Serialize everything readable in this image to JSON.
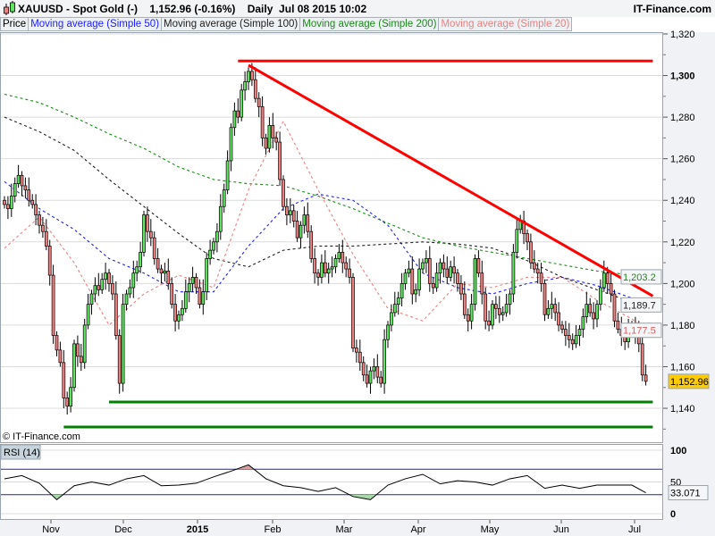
{
  "header": {
    "title": "XAUUSD - Spot Gold (-)    1,152.96 (-0.16%)    Daily  Jul 08 2015 10:02",
    "brand": "IT-Finance.com"
  },
  "legend": [
    {
      "label": "Price",
      "color": "#000000"
    },
    {
      "label": "Moving average (Simple 50)",
      "color": "#2020ff"
    },
    {
      "label": "Moving average (Simple 100)",
      "color": "#202020"
    },
    {
      "label": "Moving average (Simple 200)",
      "color": "#1a8a1a"
    },
    {
      "label": "Moving average (Simple 20)",
      "color": "#e88080"
    }
  ],
  "copyright": "© IT-Finance.com",
  "rsi_label": "RSI (14)",
  "colors": {
    "up": "#5ee65e",
    "down": "#f08080",
    "trendline": "#ff0000",
    "support": "#008000",
    "last_price_bg": "#ffcc00",
    "rsi_bands": "#2222bb"
  },
  "chart_data": [
    {
      "type": "candlestick",
      "symbol": "XAUUSD",
      "last": "1,152.96",
      "change": "-0.16%",
      "interval": "Daily",
      "x_tick_labels": [
        "Nov",
        "Dec",
        "2015",
        "Feb",
        "Mar",
        "Apr",
        "May",
        "Jun",
        "Jul"
      ],
      "y_tick_labels": [
        "1,320",
        "1,300",
        "1,280",
        "1,260",
        "1,240",
        "1,220",
        "1,200",
        "1,180",
        "1,160",
        "1,140"
      ],
      "ylim": [
        1128,
        1325
      ],
      "grid": true,
      "close": [
        1238,
        1236,
        1242,
        1248,
        1252,
        1247,
        1245,
        1240,
        1238,
        1233,
        1228,
        1225,
        1218,
        1204,
        1175,
        1168,
        1162,
        1145,
        1141,
        1150,
        1171,
        1165,
        1162,
        1180,
        1190,
        1195,
        1199,
        1197,
        1202,
        1205,
        1200,
        1195,
        1175,
        1152,
        1190,
        1195,
        1198,
        1205,
        1208,
        1215,
        1233,
        1225,
        1222,
        1212,
        1207,
        1205,
        1206,
        1200,
        1190,
        1182,
        1185,
        1188,
        1196,
        1200,
        1203,
        1198,
        1190,
        1196,
        1212,
        1216,
        1220,
        1225,
        1237,
        1245,
        1259,
        1275,
        1283,
        1280,
        1293,
        1297,
        1302,
        1298,
        1289,
        1285,
        1270,
        1265,
        1276,
        1270,
        1268,
        1250,
        1237,
        1233,
        1235,
        1230,
        1222,
        1228,
        1233,
        1225,
        1212,
        1205,
        1203,
        1210,
        1205,
        1207,
        1208,
        1212,
        1215,
        1210,
        1207,
        1203,
        1169,
        1167,
        1162,
        1156,
        1152,
        1158,
        1160,
        1155,
        1152,
        1173,
        1180,
        1186,
        1190,
        1193,
        1200,
        1205,
        1207,
        1195,
        1197,
        1207,
        1210,
        1212,
        1200,
        1198,
        1205,
        1210,
        1207,
        1203,
        1208,
        1205,
        1200,
        1195,
        1185,
        1182,
        1190,
        1212,
        1205,
        1195,
        1182,
        1180,
        1190,
        1188,
        1185,
        1186,
        1190,
        1195,
        1215,
        1226,
        1230,
        1224,
        1220,
        1210,
        1207,
        1205,
        1200,
        1185,
        1188,
        1190,
        1186,
        1180,
        1178,
        1175,
        1173,
        1171,
        1175,
        1178,
        1184,
        1190,
        1186,
        1183,
        1190,
        1198,
        1205,
        1200,
        1195,
        1182,
        1178,
        1175,
        1172,
        1178,
        1180,
        1176,
        1171,
        1156,
        1152.96
      ],
      "moving_averages_every_10_bars": {
        "sma50": {
          "name": "Moving average (Simple 50)",
          "color": "#2020ff",
          "last": "",
          "values": [
            1249,
            1236,
            1226,
            1212,
            1205,
            1196,
            1196,
            1218,
            1236,
            1243,
            1240,
            1228,
            1205,
            1198,
            1195,
            1200,
            1203,
            1199,
            1193,
            1190
          ]
        },
        "sma100": {
          "name": "Moving average (Simple 100)",
          "color": "#202020",
          "last": "1,189.7",
          "values": [
            1280,
            1273,
            1264,
            1250,
            1237,
            1224,
            1212,
            1208,
            1216,
            1218,
            1218,
            1219,
            1220,
            1219,
            1217,
            1211,
            1203,
            1197,
            1191,
            1189.7
          ]
        },
        "sma200": {
          "name": "Moving average (Simple 200)",
          "color": "#1a8a1a",
          "last": "1,203.2",
          "values": [
            1291,
            1287,
            1280,
            1272,
            1265,
            1256,
            1250,
            1248,
            1247,
            1242,
            1236,
            1229,
            1222,
            1218,
            1215,
            1212,
            1209,
            1206,
            1204,
            1203.2
          ]
        },
        "sma20": {
          "name": "Moving average (Simple 20)",
          "color": "#e88080",
          "last": "1,177.5",
          "values": [
            1217,
            1232,
            1210,
            1180,
            1195,
            1204,
            1198,
            1245,
            1278,
            1245,
            1214,
            1188,
            1182,
            1200,
            1198,
            1203,
            1203,
            1192,
            1183,
            1177.5
          ]
        }
      },
      "trendlines": [
        {
          "kind": "resistance-horizontal",
          "color": "#ff0000",
          "from_bar": 67,
          "to_bar": 186,
          "from_price": 1307,
          "to_price": 1307
        },
        {
          "kind": "resistance-diagonal",
          "color": "#ff0000",
          "from_bar": 70,
          "to_bar": 186,
          "from_price": 1305,
          "to_price": 1194
        },
        {
          "kind": "support",
          "color": "#008000",
          "from_bar": 30,
          "to_bar": 186,
          "from_price": 1143,
          "to_price": 1143
        },
        {
          "kind": "support",
          "color": "#008000",
          "from_bar": 17,
          "to_bar": 186,
          "from_price": 1131,
          "to_price": 1131
        }
      ]
    },
    {
      "type": "line",
      "name": "RSI (14)",
      "ylim": [
        0,
        100
      ],
      "y_tick_labels": [
        "100",
        "50",
        "0"
      ],
      "bands": [
        30,
        70
      ],
      "last": "33.071",
      "values_every_5_bars": [
        55,
        60,
        48,
        22,
        44,
        50,
        45,
        55,
        60,
        44,
        45,
        48,
        58,
        67,
        77,
        55,
        44,
        41,
        35,
        41,
        27,
        22,
        45,
        55,
        62,
        47,
        52,
        50,
        45,
        55,
        60,
        40,
        45,
        40,
        45,
        45,
        45,
        33.071
      ]
    }
  ]
}
